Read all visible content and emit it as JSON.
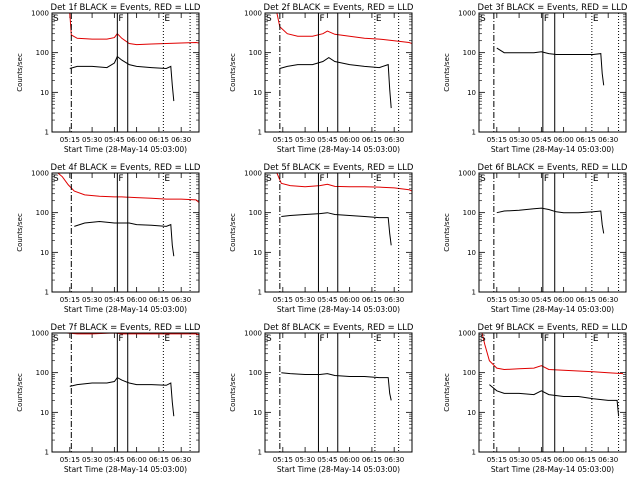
{
  "figure": {
    "background": "#ffffff",
    "colors": {
      "axes": "#000000",
      "events": "#000000",
      "lld": "#e00000"
    }
  },
  "chart_data": [
    {
      "type": "line",
      "title": "Det 1f BLACK = Events, RED = LLD",
      "xlabel": "Start Time (28-May-14 05:03:00)",
      "ylabel": "Counts/sec",
      "ylog": true,
      "ylim": [
        1,
        1000
      ],
      "xlim": [
        "05:03",
        "06:42"
      ],
      "yticks": [
        "1",
        "10",
        "100",
        "1000"
      ],
      "xticks": [
        "05:15",
        "05:30",
        "05:45",
        "06:00",
        "06:15",
        "06:30"
      ],
      "markers": [
        {
          "label": "S",
          "time": "05:03",
          "style": "none"
        },
        {
          "label": "",
          "time": "05:16",
          "style": "dashdot"
        },
        {
          "label": "F",
          "time": "05:47",
          "style": "solid"
        },
        {
          "label": "",
          "time": "05:54",
          "style": "solid"
        },
        {
          "label": "E",
          "time": "06:18",
          "style": "dotted"
        },
        {
          "label": "",
          "time": "06:36",
          "style": "dotted"
        }
      ],
      "series": [
        {
          "name": "LLD",
          "color": "#e00000",
          "x": [
            "05:15",
            "05:16",
            "05:20",
            "05:30",
            "05:40",
            "05:45",
            "05:47",
            "05:50",
            "05:55",
            "06:00",
            "06:10",
            "06:20",
            "06:30",
            "06:40",
            "06:42"
          ],
          "y": [
            1000,
            280,
            230,
            220,
            220,
            240,
            300,
            230,
            170,
            160,
            165,
            170,
            175,
            180,
            175
          ]
        },
        {
          "name": "Events",
          "color": "#000000",
          "x": [
            "05:15",
            "05:20",
            "05:30",
            "05:40",
            "05:45",
            "05:47",
            "05:50",
            "05:55",
            "06:00",
            "06:10",
            "06:20",
            "06:23",
            "06:24",
            "06:25"
          ],
          "y": [
            40,
            45,
            45,
            42,
            55,
            80,
            65,
            50,
            45,
            42,
            40,
            45,
            15,
            6
          ]
        }
      ]
    },
    {
      "type": "line",
      "title": "Det 2f BLACK = Events, RED = LLD",
      "xlabel": "Start Time (28-May-14 05:03:00)",
      "ylabel": "Counts/sec",
      "ylog": true,
      "ylim": [
        1,
        1000
      ],
      "xlim": [
        "05:03",
        "06:42"
      ],
      "yticks": [
        "1",
        "10",
        "100",
        "1000"
      ],
      "xticks": [
        "05:15",
        "05:30",
        "05:45",
        "06:00",
        "06:15",
        "06:30"
      ],
      "markers": [
        {
          "label": "S",
          "time": "05:03",
          "style": "none"
        },
        {
          "label": "",
          "time": "05:13",
          "style": "dashdot"
        },
        {
          "label": "F",
          "time": "05:39",
          "style": "solid"
        },
        {
          "label": "",
          "time": "05:52",
          "style": "solid"
        },
        {
          "label": "E",
          "time": "06:17",
          "style": "dotted"
        },
        {
          "label": "",
          "time": "06:33",
          "style": "dotted"
        }
      ],
      "series": [
        {
          "name": "LLD",
          "color": "#e00000",
          "x": [
            "05:11",
            "05:13",
            "05:18",
            "05:25",
            "05:35",
            "05:42",
            "05:45",
            "05:50",
            "06:00",
            "06:10",
            "06:20",
            "06:30",
            "06:40",
            "06:42"
          ],
          "y": [
            1000,
            450,
            300,
            260,
            260,
            300,
            350,
            290,
            260,
            230,
            220,
            200,
            180,
            170
          ]
        },
        {
          "name": "Events",
          "color": "#000000",
          "x": [
            "05:13",
            "05:18",
            "05:25",
            "05:35",
            "05:42",
            "05:46",
            "05:50",
            "06:00",
            "06:10",
            "06:20",
            "06:26",
            "06:27",
            "06:28"
          ],
          "y": [
            40,
            45,
            50,
            50,
            60,
            75,
            60,
            50,
            45,
            42,
            50,
            12,
            4
          ]
        }
      ]
    },
    {
      "type": "line",
      "title": "Det 3f BLACK = Events, RED = LLD",
      "xlabel": "Start Time (28-May-14 05:03:00)",
      "ylabel": "Counts/sec",
      "ylog": true,
      "ylim": [
        1,
        1000
      ],
      "xlim": [
        "05:03",
        "06:42"
      ],
      "yticks": [
        "1",
        "10",
        "100",
        "1000"
      ],
      "xticks": [
        "05:15",
        "05:30",
        "05:45",
        "06:00",
        "06:15",
        "06:30"
      ],
      "markers": [
        {
          "label": "S",
          "time": "05:03",
          "style": "none"
        },
        {
          "label": "",
          "time": "05:13",
          "style": "dashdot"
        },
        {
          "label": "F",
          "time": "05:46",
          "style": "solid"
        },
        {
          "label": "",
          "time": "05:54",
          "style": "solid"
        },
        {
          "label": "E",
          "time": "06:19",
          "style": "dotted"
        },
        {
          "label": "",
          "time": "06:37",
          "style": "dotted"
        }
      ],
      "series": [
        {
          "name": "Events",
          "color": "#000000",
          "x": [
            "05:15",
            "05:20",
            "05:30",
            "05:40",
            "05:45",
            "05:50",
            "05:55",
            "06:00",
            "06:10",
            "06:20",
            "06:25",
            "06:26",
            "06:27"
          ],
          "y": [
            130,
            100,
            100,
            100,
            105,
            95,
            90,
            90,
            90,
            90,
            95,
            30,
            15
          ]
        }
      ]
    },
    {
      "type": "line",
      "title": "Det 4f BLACK = Events, RED = LLD",
      "xlabel": "Start Time (28-May-14 05:03:00)",
      "ylabel": "Counts/sec",
      "ylog": true,
      "ylim": [
        1,
        1000
      ],
      "xlim": [
        "05:03",
        "06:42"
      ],
      "yticks": [
        "1",
        "10",
        "100",
        "1000"
      ],
      "xticks": [
        "05:15",
        "05:30",
        "05:45",
        "06:00",
        "06:15",
        "06:30"
      ],
      "markers": [
        {
          "label": "S",
          "time": "05:03",
          "style": "none"
        },
        {
          "label": "",
          "time": "05:16",
          "style": "dashdot"
        },
        {
          "label": "F",
          "time": "05:47",
          "style": "solid"
        },
        {
          "label": "",
          "time": "05:54",
          "style": "solid"
        },
        {
          "label": "E",
          "time": "06:18",
          "style": "dotted"
        },
        {
          "label": "",
          "time": "06:36",
          "style": "dotted"
        }
      ],
      "series": [
        {
          "name": "LLD",
          "color": "#e00000",
          "x": [
            "05:07",
            "05:10",
            "05:14",
            "05:18",
            "05:25",
            "05:35",
            "05:45",
            "05:50",
            "06:00",
            "06:10",
            "06:20",
            "06:30",
            "06:40",
            "06:42"
          ],
          "y": [
            1000,
            800,
            500,
            350,
            280,
            260,
            250,
            250,
            240,
            230,
            220,
            220,
            210,
            180
          ]
        },
        {
          "name": "Events",
          "color": "#000000",
          "x": [
            "05:18",
            "05:25",
            "05:35",
            "05:45",
            "05:50",
            "05:55",
            "06:00",
            "06:10",
            "06:20",
            "06:23",
            "06:24",
            "06:25"
          ],
          "y": [
            45,
            55,
            60,
            55,
            55,
            55,
            50,
            48,
            45,
            50,
            15,
            8
          ]
        }
      ]
    },
    {
      "type": "line",
      "title": "Det 5f BLACK = Events, RED = LLD",
      "xlabel": "Start Time (28-May-14 05:03:00)",
      "ylabel": "Counts/sec",
      "ylog": true,
      "ylim": [
        1,
        1000
      ],
      "xlim": [
        "05:03",
        "06:42"
      ],
      "yticks": [
        "1",
        "10",
        "100",
        "1000"
      ],
      "xticks": [
        "05:15",
        "05:30",
        "05:45",
        "06:00",
        "06:15",
        "06:30"
      ],
      "markers": [
        {
          "label": "S",
          "time": "05:03",
          "style": "none"
        },
        {
          "label": "",
          "time": "05:13",
          "style": "dashdot"
        },
        {
          "label": "F",
          "time": "05:39",
          "style": "solid"
        },
        {
          "label": "",
          "time": "05:52",
          "style": "solid"
        },
        {
          "label": "E",
          "time": "06:17",
          "style": "dotted"
        },
        {
          "label": "",
          "time": "06:33",
          "style": "dotted"
        }
      ],
      "series": [
        {
          "name": "LLD",
          "color": "#e00000",
          "x": [
            "05:11",
            "05:14",
            "05:20",
            "05:30",
            "05:40",
            "05:45",
            "05:50",
            "06:00",
            "06:10",
            "06:20",
            "06:30",
            "06:40",
            "06:42"
          ],
          "y": [
            1000,
            550,
            480,
            450,
            480,
            520,
            460,
            450,
            450,
            440,
            420,
            380,
            350
          ]
        },
        {
          "name": "Events",
          "color": "#000000",
          "x": [
            "05:14",
            "05:20",
            "05:30",
            "05:40",
            "05:45",
            "05:50",
            "06:00",
            "06:10",
            "06:20",
            "06:26",
            "06:27",
            "06:28"
          ],
          "y": [
            80,
            85,
            90,
            95,
            100,
            90,
            85,
            80,
            75,
            75,
            30,
            15
          ]
        }
      ]
    },
    {
      "type": "line",
      "title": "Det 6f BLACK = Events, RED = LLD",
      "xlabel": "Start Time (28-May-14 05:03:00)",
      "ylabel": "Counts/sec",
      "ylog": true,
      "ylim": [
        1,
        1000
      ],
      "xlim": [
        "05:03",
        "06:42"
      ],
      "yticks": [
        "1",
        "10",
        "100",
        "1000"
      ],
      "xticks": [
        "05:15",
        "05:30",
        "05:45",
        "06:00",
        "06:15",
        "06:30"
      ],
      "markers": [
        {
          "label": "S",
          "time": "05:03",
          "style": "none"
        },
        {
          "label": "",
          "time": "05:13",
          "style": "dashdot"
        },
        {
          "label": "F",
          "time": "05:46",
          "style": "solid"
        },
        {
          "label": "",
          "time": "05:54",
          "style": "solid"
        },
        {
          "label": "E",
          "time": "06:19",
          "style": "dotted"
        },
        {
          "label": "",
          "time": "06:37",
          "style": "dotted"
        }
      ],
      "series": [
        {
          "name": "Events",
          "color": "#000000",
          "x": [
            "05:15",
            "05:20",
            "05:30",
            "05:40",
            "05:45",
            "05:50",
            "05:55",
            "06:00",
            "06:10",
            "06:20",
            "06:25",
            "06:26",
            "06:27"
          ],
          "y": [
            100,
            110,
            115,
            125,
            130,
            120,
            105,
            100,
            100,
            105,
            110,
            50,
            30
          ]
        }
      ]
    },
    {
      "type": "line",
      "title": "Det 7f BLACK = Events, RED = LLD",
      "xlabel": "Start Time (28-May-14 05:03:00)",
      "ylabel": "Counts/sec",
      "ylog": true,
      "ylim": [
        1,
        1000
      ],
      "xlim": [
        "05:03",
        "06:42"
      ],
      "yticks": [
        "1",
        "10",
        "100",
        "1000"
      ],
      "xticks": [
        "05:15",
        "05:30",
        "05:45",
        "06:00",
        "06:15",
        "06:30"
      ],
      "markers": [
        {
          "label": "S",
          "time": "05:03",
          "style": "none"
        },
        {
          "label": "",
          "time": "05:16",
          "style": "dashdot"
        },
        {
          "label": "F",
          "time": "05:47",
          "style": "solid"
        },
        {
          "label": "",
          "time": "05:54",
          "style": "solid"
        },
        {
          "label": "E",
          "time": "06:18",
          "style": "dotted"
        },
        {
          "label": "",
          "time": "06:36",
          "style": "dotted"
        }
      ],
      "series": [
        {
          "name": "LLD",
          "color": "#e00000",
          "x": [
            "05:13",
            "05:20",
            "05:30",
            "05:40",
            "05:45",
            "05:50",
            "06:00",
            "06:10",
            "06:20",
            "06:30",
            "06:40",
            "06:42"
          ],
          "y": [
            1000,
            950,
            950,
            980,
            1000,
            950,
            950,
            950,
            950,
            950,
            950,
            900
          ]
        },
        {
          "name": "Events",
          "color": "#000000",
          "x": [
            "05:15",
            "05:20",
            "05:30",
            "05:40",
            "05:45",
            "05:47",
            "05:50",
            "05:55",
            "06:00",
            "06:10",
            "06:20",
            "06:23",
            "06:24",
            "06:25"
          ],
          "y": [
            45,
            50,
            55,
            55,
            60,
            75,
            65,
            55,
            50,
            50,
            48,
            55,
            18,
            8
          ]
        }
      ]
    },
    {
      "type": "line",
      "title": "Det 8f BLACK = Events, RED = LLD",
      "xlabel": "Start Time (28-May-14 05:03:00)",
      "ylabel": "Counts/sec",
      "ylog": true,
      "ylim": [
        1,
        1000
      ],
      "xlim": [
        "05:03",
        "06:42"
      ],
      "yticks": [
        "1",
        "10",
        "100",
        "1000"
      ],
      "xticks": [
        "05:15",
        "05:30",
        "05:45",
        "06:00",
        "06:15",
        "06:30"
      ],
      "markers": [
        {
          "label": "S",
          "time": "05:03",
          "style": "none"
        },
        {
          "label": "",
          "time": "05:13",
          "style": "dashdot"
        },
        {
          "label": "F",
          "time": "05:39",
          "style": "solid"
        },
        {
          "label": "",
          "time": "05:52",
          "style": "solid"
        },
        {
          "label": "E",
          "time": "06:17",
          "style": "dotted"
        },
        {
          "label": "",
          "time": "06:33",
          "style": "dotted"
        }
      ],
      "series": [
        {
          "name": "Events",
          "color": "#000000",
          "x": [
            "05:14",
            "05:20",
            "05:30",
            "05:40",
            "05:45",
            "05:50",
            "06:00",
            "06:10",
            "06:20",
            "06:26",
            "06:27",
            "06:28"
          ],
          "y": [
            100,
            95,
            90,
            90,
            95,
            85,
            80,
            80,
            75,
            75,
            30,
            20
          ]
        }
      ]
    },
    {
      "type": "line",
      "title": "Det 9f BLACK = Events, RED = LLD",
      "xlabel": "Start Time (28-May-14 05:03:00)",
      "ylabel": "Counts/sec",
      "ylog": true,
      "ylim": [
        1,
        1000
      ],
      "xlim": [
        "05:03",
        "06:42"
      ],
      "yticks": [
        "1",
        "10",
        "100",
        "1000"
      ],
      "xticks": [
        "05:15",
        "05:30",
        "05:45",
        "06:00",
        "06:15",
        "06:30"
      ],
      "markers": [
        {
          "label": "S",
          "time": "05:03",
          "style": "none"
        },
        {
          "label": "",
          "time": "05:13",
          "style": "dashdot"
        },
        {
          "label": "F",
          "time": "05:46",
          "style": "solid"
        },
        {
          "label": "",
          "time": "05:54",
          "style": "solid"
        },
        {
          "label": "E",
          "time": "06:19",
          "style": "dotted"
        },
        {
          "label": "",
          "time": "06:37",
          "style": "dotted"
        }
      ],
      "series": [
        {
          "name": "LLD",
          "color": "#e00000",
          "x": [
            "05:05",
            "05:07",
            "05:10",
            "05:15",
            "05:20",
            "05:30",
            "05:40",
            "05:45",
            "05:50",
            "06:00",
            "06:10",
            "06:20",
            "06:30",
            "06:40"
          ],
          "y": [
            1000,
            500,
            200,
            130,
            120,
            125,
            130,
            150,
            120,
            115,
            110,
            105,
            100,
            95
          ]
        },
        {
          "name": "Events",
          "color": "#000000",
          "x": [
            "05:10",
            "05:15",
            "05:20",
            "05:30",
            "05:40",
            "05:45",
            "05:50",
            "06:00",
            "06:10",
            "06:20",
            "06:30",
            "06:36",
            "06:37"
          ],
          "y": [
            50,
            35,
            30,
            30,
            28,
            35,
            28,
            25,
            25,
            22,
            20,
            20,
            8
          ]
        }
      ]
    }
  ]
}
